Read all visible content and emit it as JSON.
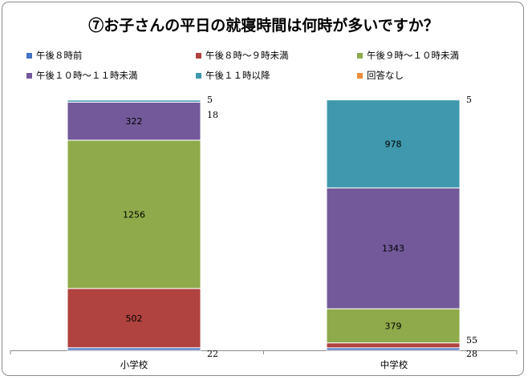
{
  "chart_data": {
    "type": "stacked-bar",
    "title": "⑦お子さんの平日の就寝時間は何時が多いですか？",
    "categories": [
      "小学校",
      "中学校"
    ],
    "series": [
      {
        "name": "午後８時前",
        "color": "#4472c4",
        "values": [
          22,
          28
        ]
      },
      {
        "name": "午後８時～９時未満",
        "color": "#b0423f",
        "values": [
          502,
          55
        ]
      },
      {
        "name": "午後９時～１０時未満",
        "color": "#8eaa4a",
        "values": [
          1256,
          379
        ]
      },
      {
        "name": "午後１０時～１１時未満",
        "color": "#73599a",
        "values": [
          322,
          1343
        ]
      },
      {
        "name": "午後１１時以降",
        "color": "#3f98ad",
        "values": [
          18,
          978
        ]
      },
      {
        "name": "回答なし",
        "color": "#ec8c3c",
        "values": [
          5,
          5
        ]
      }
    ],
    "label_position": [
      [
        "side",
        "inside",
        "inside",
        "inside",
        "side",
        "side"
      ],
      [
        "side",
        "side",
        "inside",
        "inside",
        "inside",
        "side"
      ]
    ],
    "xlabel": "",
    "ylabel": "",
    "legend": "top"
  }
}
